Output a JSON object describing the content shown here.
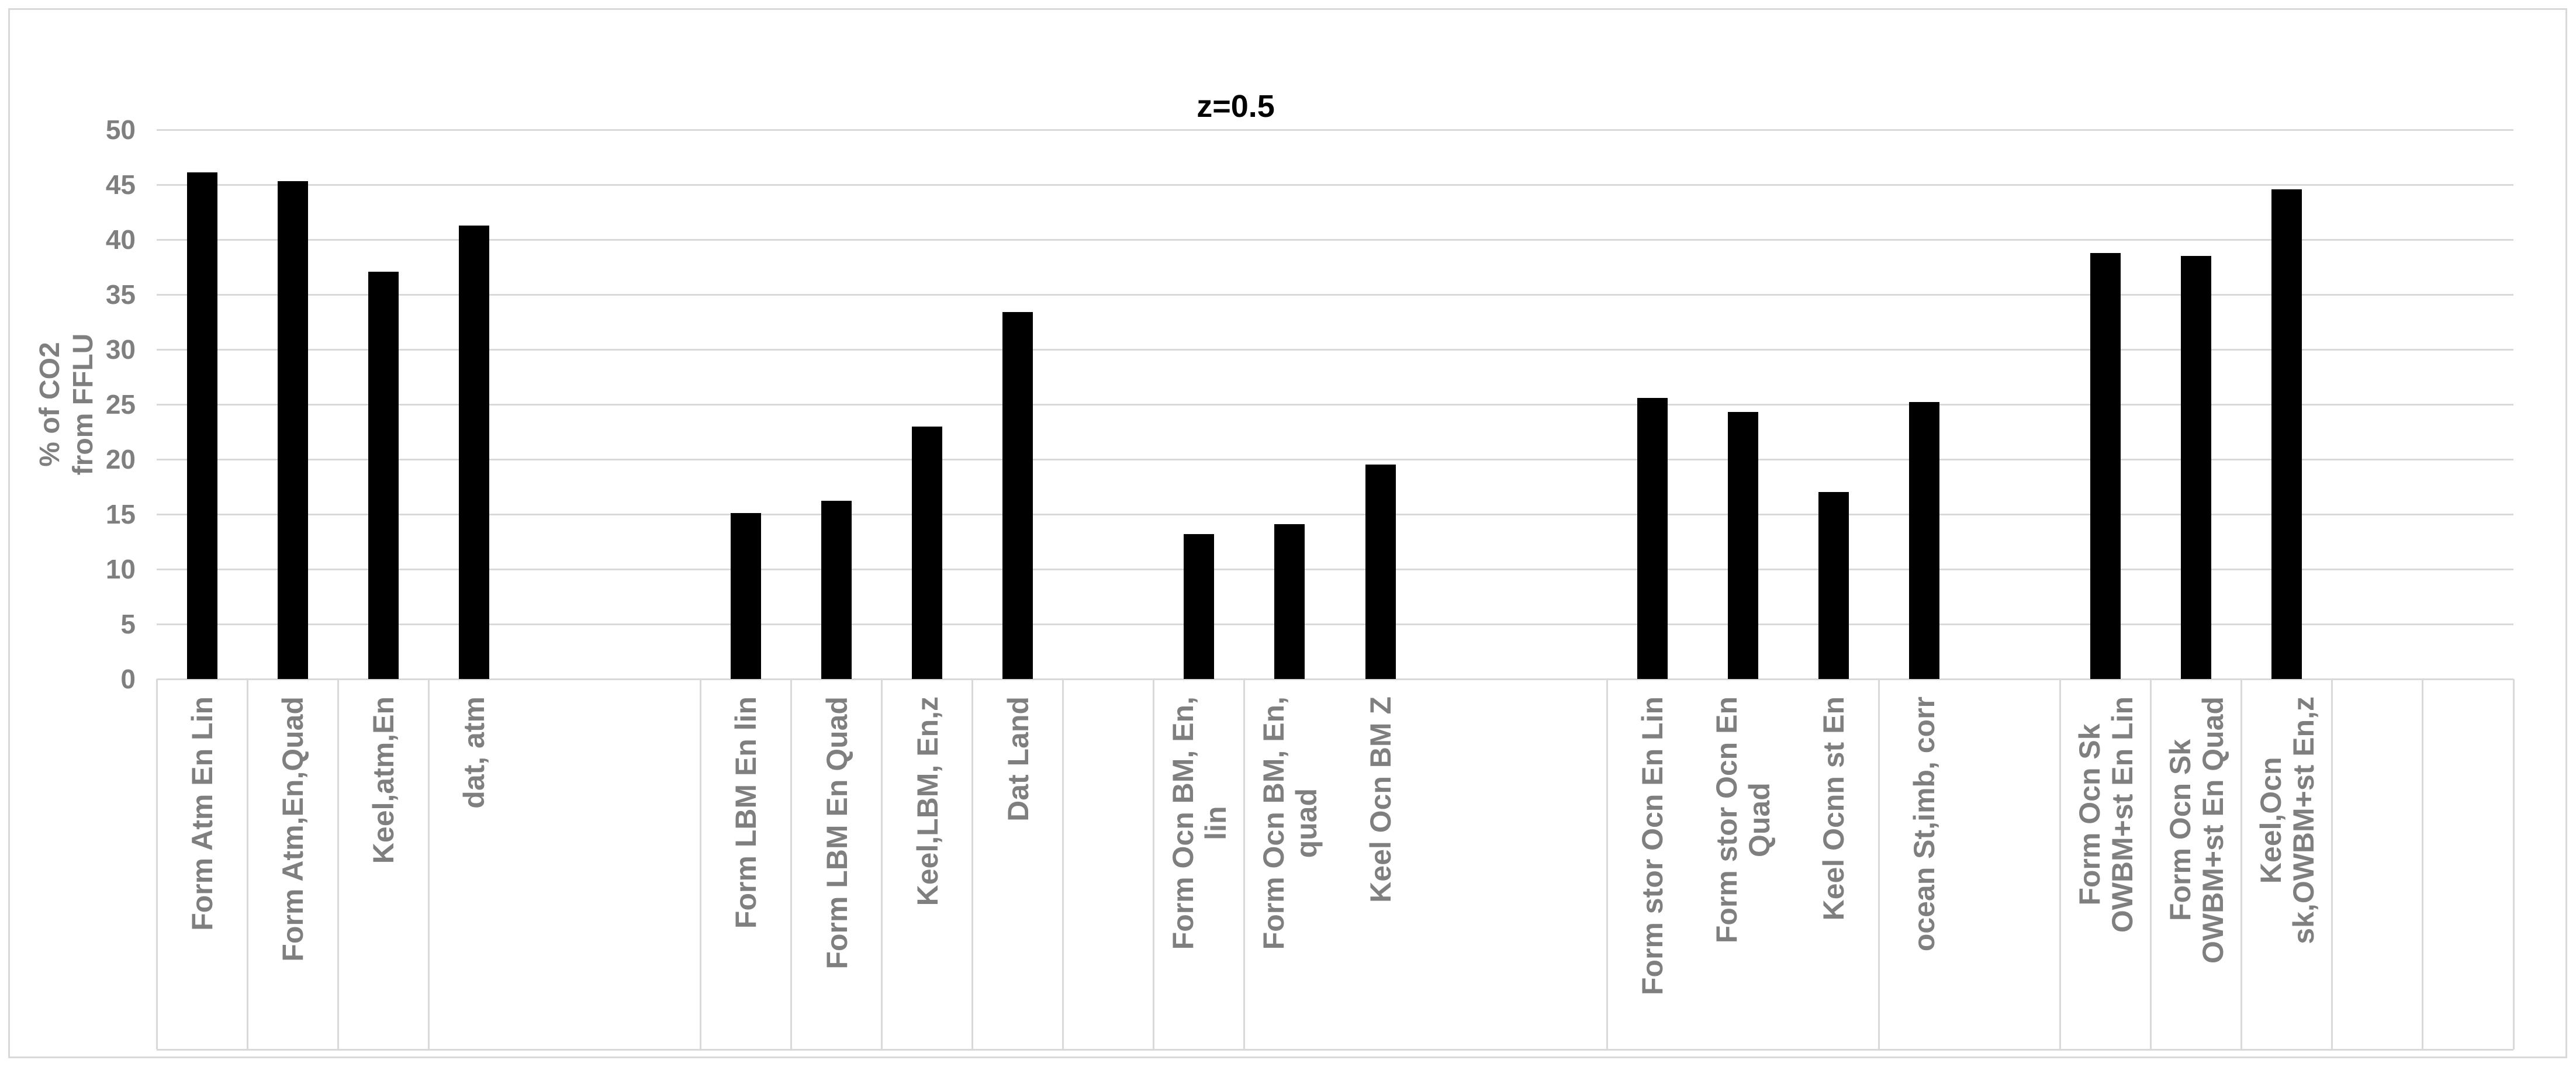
{
  "chart_data": {
    "type": "bar",
    "title": "z=0.5",
    "ylabel": "% of CO2\nfrom FFLU",
    "xlabel": "",
    "ylim": [
      0,
      50
    ],
    "ytick_step": 5,
    "yticks": [
      0,
      5,
      10,
      15,
      20,
      25,
      30,
      35,
      40,
      45,
      50
    ],
    "grid": "horizontal-on",
    "legend_position": "none",
    "colors": {
      "bar": "#000000",
      "grid": "#d9d9d9",
      "axis_text": "#7f7f7f",
      "title_text": "#000000",
      "background": "#ffffff"
    },
    "n_slots": 26,
    "tick_boundaries": [
      0,
      1,
      2,
      3,
      6,
      7,
      8,
      9,
      10,
      11,
      12,
      16,
      19,
      21,
      22,
      23,
      24,
      25,
      26
    ],
    "categories": [
      "Form Atm En Lin",
      "Form Atm,En,Quad",
      "Keel,atm,En",
      "dat, atm",
      "Form LBM En lin",
      "Form LBM En Quad",
      "Keel,LBM, En,z",
      "Dat Land",
      "Form Ocn  BM, En,\nlin",
      "Form Ocn  BM, En,\nquad",
      "Keel Ocn BM Z",
      "Form stor Ocn En Lin",
      "Form stor Ocn En\nQuad",
      "Keel Ocnn st En",
      "ocean St,imb, corr",
      "Form Ocn Sk\nOWBM+st  En Lin",
      "Form Ocn Sk\nOWBM+st  En Quad",
      "Keel,Ocn\nsk,OWBM+st En,z"
    ],
    "values": [
      46.1,
      45.3,
      37.1,
      41.3,
      15.1,
      16.2,
      23.0,
      33.4,
      13.2,
      14.1,
      19.5,
      25.6,
      24.3,
      17.0,
      25.2,
      38.8,
      38.5,
      44.6
    ],
    "points": [
      {
        "slot": 0,
        "label": "Form Atm En Lin",
        "value": 46.1
      },
      {
        "slot": 1,
        "label": "Form Atm,En,Quad",
        "value": 45.3
      },
      {
        "slot": 2,
        "label": "Keel,atm,En",
        "value": 37.1
      },
      {
        "slot": 3,
        "label": "dat, atm",
        "value": 41.3
      },
      {
        "slot": 6,
        "label": "Form LBM En lin",
        "value": 15.1
      },
      {
        "slot": 7,
        "label": "Form LBM En Quad",
        "value": 16.2
      },
      {
        "slot": 8,
        "label": "Keel,LBM, En,z",
        "value": 23.0
      },
      {
        "slot": 9,
        "label": "Dat Land",
        "value": 33.4
      },
      {
        "slot": 11,
        "label": "Form Ocn  BM, En,\nlin",
        "value": 13.2
      },
      {
        "slot": 12,
        "label": "Form Ocn  BM, En,\nquad",
        "value": 14.1
      },
      {
        "slot": 13,
        "label": "Keel Ocn BM Z",
        "value": 19.5
      },
      {
        "slot": 16,
        "label": "Form stor Ocn En Lin",
        "value": 25.6
      },
      {
        "slot": 17,
        "label": "Form stor Ocn En\nQuad",
        "value": 24.3
      },
      {
        "slot": 18,
        "label": "Keel Ocnn st En",
        "value": 17.0
      },
      {
        "slot": 19,
        "label": "ocean St,imb, corr",
        "value": 25.2
      },
      {
        "slot": 21,
        "label": "Form Ocn Sk\nOWBM+st  En Lin",
        "value": 38.8
      },
      {
        "slot": 22,
        "label": "Form Ocn Sk\nOWBM+st  En Quad",
        "value": 38.5
      },
      {
        "slot": 23,
        "label": "Keel,Ocn\nsk,OWBM+st En,z",
        "value": 44.6
      }
    ]
  }
}
